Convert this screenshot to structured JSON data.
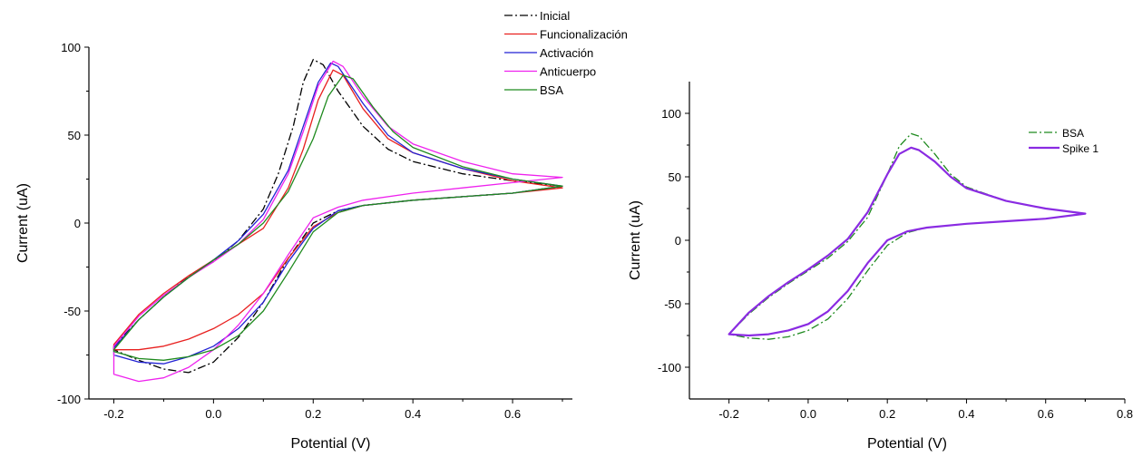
{
  "chart_data": [
    {
      "type": "line",
      "xlabel": "Potential (V)",
      "ylabel": "Current (uA)",
      "xlim": [
        -0.25,
        0.72
      ],
      "ylim": [
        -100,
        100
      ],
      "x_ticks": [
        -0.2,
        0.0,
        0.2,
        0.4,
        0.6
      ],
      "x_tick_labels": [
        "-0.2",
        "0.0",
        "0.2",
        "0.4",
        "0.6"
      ],
      "y_ticks": [
        -100,
        -50,
        0,
        50,
        100
      ],
      "y_tick_labels": [
        "-100",
        "-50",
        "0",
        "50",
        "100"
      ],
      "grid": false,
      "legend_position": "top-right",
      "series": [
        {
          "name": "Inicial",
          "color": "#000000",
          "dash": "dashdot",
          "points": [
            [
              -0.2,
              -70
            ],
            [
              -0.15,
              -55
            ],
            [
              -0.1,
              -42
            ],
            [
              -0.05,
              -30
            ],
            [
              0.0,
              -22
            ],
            [
              0.05,
              -10
            ],
            [
              0.1,
              8
            ],
            [
              0.13,
              28
            ],
            [
              0.16,
              55
            ],
            [
              0.18,
              80
            ],
            [
              0.2,
              93
            ],
            [
              0.22,
              90
            ],
            [
              0.25,
              75
            ],
            [
              0.3,
              55
            ],
            [
              0.35,
              42
            ],
            [
              0.4,
              35
            ],
            [
              0.5,
              28
            ],
            [
              0.6,
              24
            ],
            [
              0.7,
              21
            ],
            [
              0.6,
              17
            ],
            [
              0.5,
              15
            ],
            [
              0.4,
              13
            ],
            [
              0.3,
              10
            ],
            [
              0.25,
              7
            ],
            [
              0.2,
              0
            ],
            [
              0.15,
              -20
            ],
            [
              0.1,
              -45
            ],
            [
              0.05,
              -65
            ],
            [
              0.0,
              -79
            ],
            [
              -0.05,
              -85
            ],
            [
              -0.1,
              -83
            ],
            [
              -0.15,
              -78
            ],
            [
              -0.2,
              -72
            ]
          ]
        },
        {
          "name": "Funcionalización",
          "color": "#e8201f",
          "dash": "solid",
          "points": [
            [
              -0.2,
              -69
            ],
            [
              -0.15,
              -52
            ],
            [
              -0.1,
              -40
            ],
            [
              -0.05,
              -30
            ],
            [
              0.0,
              -21
            ],
            [
              0.05,
              -12
            ],
            [
              0.1,
              -3
            ],
            [
              0.15,
              20
            ],
            [
              0.18,
              42
            ],
            [
              0.21,
              70
            ],
            [
              0.24,
              87
            ],
            [
              0.26,
              84
            ],
            [
              0.3,
              65
            ],
            [
              0.35,
              48
            ],
            [
              0.4,
              40
            ],
            [
              0.5,
              31
            ],
            [
              0.6,
              24
            ],
            [
              0.7,
              20
            ],
            [
              0.6,
              17
            ],
            [
              0.5,
              15
            ],
            [
              0.4,
              13
            ],
            [
              0.3,
              10
            ],
            [
              0.25,
              6
            ],
            [
              0.2,
              -2
            ],
            [
              0.15,
              -20
            ],
            [
              0.1,
              -40
            ],
            [
              0.05,
              -52
            ],
            [
              0.0,
              -60
            ],
            [
              -0.05,
              -66
            ],
            [
              -0.1,
              -70
            ],
            [
              -0.15,
              -72
            ],
            [
              -0.2,
              -72
            ]
          ]
        },
        {
          "name": "Activación",
          "color": "#2222d4",
          "dash": "solid",
          "points": [
            [
              -0.2,
              -71
            ],
            [
              -0.15,
              -55
            ],
            [
              -0.1,
              -42
            ],
            [
              -0.05,
              -31
            ],
            [
              0.0,
              -21
            ],
            [
              0.05,
              -10
            ],
            [
              0.1,
              5
            ],
            [
              0.15,
              30
            ],
            [
              0.18,
              55
            ],
            [
              0.21,
              80
            ],
            [
              0.235,
              91
            ],
            [
              0.25,
              89
            ],
            [
              0.3,
              68
            ],
            [
              0.35,
              50
            ],
            [
              0.4,
              40
            ],
            [
              0.5,
              31
            ],
            [
              0.6,
              25
            ],
            [
              0.7,
              21
            ],
            [
              0.6,
              17
            ],
            [
              0.5,
              15
            ],
            [
              0.4,
              13
            ],
            [
              0.3,
              10
            ],
            [
              0.25,
              7
            ],
            [
              0.2,
              -3
            ],
            [
              0.15,
              -22
            ],
            [
              0.1,
              -45
            ],
            [
              0.05,
              -60
            ],
            [
              0.0,
              -70
            ],
            [
              -0.05,
              -76
            ],
            [
              -0.1,
              -80
            ],
            [
              -0.15,
              -79
            ],
            [
              -0.2,
              -75
            ]
          ]
        },
        {
          "name": "Anticuerpo",
          "color": "#ee22ee",
          "dash": "solid",
          "points": [
            [
              -0.2,
              -70
            ],
            [
              -0.15,
              -53
            ],
            [
              -0.1,
              -41
            ],
            [
              -0.05,
              -31
            ],
            [
              0.0,
              -22
            ],
            [
              0.05,
              -12
            ],
            [
              0.1,
              2
            ],
            [
              0.15,
              28
            ],
            [
              0.18,
              52
            ],
            [
              0.21,
              78
            ],
            [
              0.24,
              92
            ],
            [
              0.26,
              89
            ],
            [
              0.3,
              72
            ],
            [
              0.35,
              55
            ],
            [
              0.4,
              45
            ],
            [
              0.5,
              35
            ],
            [
              0.6,
              28
            ],
            [
              0.7,
              26
            ],
            [
              0.6,
              23
            ],
            [
              0.5,
              20
            ],
            [
              0.4,
              17
            ],
            [
              0.3,
              13
            ],
            [
              0.25,
              9
            ],
            [
              0.2,
              3
            ],
            [
              0.15,
              -18
            ],
            [
              0.1,
              -40
            ],
            [
              0.05,
              -58
            ],
            [
              0.0,
              -72
            ],
            [
              -0.05,
              -82
            ],
            [
              -0.1,
              -88
            ],
            [
              -0.15,
              -90
            ],
            [
              -0.2,
              -86
            ]
          ]
        },
        {
          "name": "BSA",
          "color": "#1e8a1e",
          "dash": "solid",
          "points": [
            [
              -0.2,
              -72
            ],
            [
              -0.15,
              -55
            ],
            [
              -0.1,
              -42
            ],
            [
              -0.05,
              -31
            ],
            [
              0.0,
              -21
            ],
            [
              0.05,
              -12
            ],
            [
              0.1,
              0
            ],
            [
              0.15,
              18
            ],
            [
              0.2,
              48
            ],
            [
              0.23,
              72
            ],
            [
              0.26,
              84
            ],
            [
              0.28,
              82
            ],
            [
              0.32,
              66
            ],
            [
              0.36,
              52
            ],
            [
              0.4,
              43
            ],
            [
              0.5,
              32
            ],
            [
              0.6,
              25
            ],
            [
              0.7,
              21
            ],
            [
              0.6,
              17
            ],
            [
              0.5,
              15
            ],
            [
              0.4,
              13
            ],
            [
              0.3,
              10
            ],
            [
              0.25,
              6
            ],
            [
              0.2,
              -5
            ],
            [
              0.15,
              -28
            ],
            [
              0.1,
              -50
            ],
            [
              0.05,
              -64
            ],
            [
              0.0,
              -72
            ],
            [
              -0.05,
              -76
            ],
            [
              -0.1,
              -78
            ],
            [
              -0.15,
              -77
            ],
            [
              -0.2,
              -73
            ]
          ]
        }
      ]
    },
    {
      "type": "line",
      "xlabel": "Potential (V)",
      "ylabel": "Current (uA)",
      "xlim": [
        -0.3,
        0.8
      ],
      "ylim": [
        -125,
        125
      ],
      "x_ticks": [
        -0.2,
        0.0,
        0.2,
        0.4,
        0.6,
        0.8
      ],
      "x_tick_labels": [
        "-0.2",
        "0.0",
        "0.2",
        "0.4",
        "0.6",
        "0.8"
      ],
      "y_ticks": [
        -100,
        -50,
        0,
        50,
        100
      ],
      "y_tick_labels": [
        "-100",
        "-50",
        "0",
        "50",
        "100"
      ],
      "grid": false,
      "legend_position": "top-right",
      "series": [
        {
          "name": "BSA",
          "color": "#1e8a1e",
          "dash": "dashdot",
          "points": [
            [
              -0.2,
              -74
            ],
            [
              -0.15,
              -58
            ],
            [
              -0.1,
              -45
            ],
            [
              -0.05,
              -34
            ],
            [
              0.0,
              -24
            ],
            [
              0.05,
              -14
            ],
            [
              0.1,
              -1
            ],
            [
              0.15,
              18
            ],
            [
              0.2,
              52
            ],
            [
              0.23,
              74
            ],
            [
              0.26,
              84
            ],
            [
              0.28,
              82
            ],
            [
              0.32,
              68
            ],
            [
              0.36,
              52
            ],
            [
              0.4,
              42
            ],
            [
              0.5,
              31
            ],
            [
              0.6,
              25
            ],
            [
              0.7,
              21
            ],
            [
              0.6,
              17
            ],
            [
              0.5,
              15
            ],
            [
              0.4,
              13
            ],
            [
              0.3,
              10
            ],
            [
              0.25,
              6
            ],
            [
              0.2,
              -4
            ],
            [
              0.15,
              -24
            ],
            [
              0.1,
              -46
            ],
            [
              0.05,
              -62
            ],
            [
              0.0,
              -71
            ],
            [
              -0.05,
              -76
            ],
            [
              -0.1,
              -78
            ],
            [
              -0.15,
              -77
            ],
            [
              -0.2,
              -74
            ]
          ]
        },
        {
          "name": "Spike 1",
          "color": "#8a2be2",
          "dash": "solid",
          "points": [
            [
              -0.2,
              -74
            ],
            [
              -0.15,
              -57
            ],
            [
              -0.1,
              -44
            ],
            [
              -0.05,
              -33
            ],
            [
              0.0,
              -23
            ],
            [
              0.05,
              -12
            ],
            [
              0.1,
              1
            ],
            [
              0.15,
              22
            ],
            [
              0.2,
              52
            ],
            [
              0.23,
              68
            ],
            [
              0.26,
              73
            ],
            [
              0.28,
              71
            ],
            [
              0.32,
              62
            ],
            [
              0.36,
              50
            ],
            [
              0.4,
              41
            ],
            [
              0.5,
              31
            ],
            [
              0.6,
              25
            ],
            [
              0.7,
              21
            ],
            [
              0.6,
              17
            ],
            [
              0.5,
              15
            ],
            [
              0.4,
              13
            ],
            [
              0.3,
              10
            ],
            [
              0.25,
              7
            ],
            [
              0.2,
              0
            ],
            [
              0.15,
              -18
            ],
            [
              0.1,
              -40
            ],
            [
              0.05,
              -56
            ],
            [
              0.0,
              -66
            ],
            [
              -0.05,
              -71
            ],
            [
              -0.1,
              -74
            ],
            [
              -0.15,
              -75
            ],
            [
              -0.2,
              -74
            ]
          ]
        }
      ]
    }
  ]
}
